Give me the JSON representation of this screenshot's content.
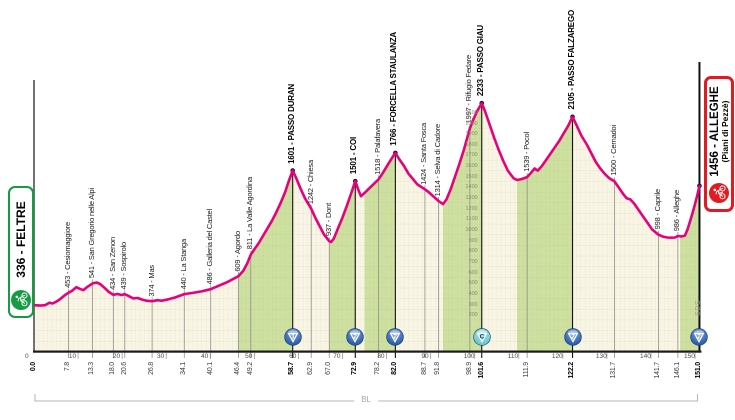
{
  "colors": {
    "line_pink": "#e6007d",
    "fill_beige": "#f9f5e4",
    "fill_green": "#cde09f",
    "grid": "#a9a188",
    "axis_black": "#1a1a1a",
    "tick_gray": "#8f8f8f",
    "start_green": "#169a43",
    "finish_red": "#e01b22",
    "cat_ball_blue": "#1c4f9e",
    "cima_coppi_teal": "#5cc2c9"
  },
  "chart_data": {
    "type": "area",
    "x_unit": "km",
    "x_range": [
      0,
      151
    ],
    "y_unit": "m",
    "axis_ticks": [
      10,
      20,
      30,
      40,
      50,
      60,
      70,
      80,
      90,
      100,
      110,
      120,
      130,
      140,
      150
    ],
    "axis_zero_label": "0",
    "elevation_scale": [
      200,
      300,
      400,
      500,
      600,
      700,
      800,
      900,
      1000,
      1100,
      1200,
      1300,
      1400,
      1500,
      1600,
      1700,
      1800,
      1900,
      2000,
      2100
    ],
    "start": {
      "km": 0.0,
      "elev": 336,
      "label": "336 - FELTRE",
      "type": "start"
    },
    "finish": {
      "km": 151.0,
      "elev": 1456,
      "label": "1456 - ALLEGHE",
      "sub": "(Piani di Pezzè)",
      "type": "finish",
      "cat": "2"
    },
    "waypoints": [
      {
        "km": 7.8,
        "elev": 453,
        "label": "453 - Cesiomaggiore",
        "type": "waypoint"
      },
      {
        "km": 13.3,
        "elev": 541,
        "label": "541 - San Gregorio nelle Alpi",
        "type": "waypoint"
      },
      {
        "km": 18.0,
        "elev": 434,
        "label": "434 - San Zenon",
        "type": "waypoint"
      },
      {
        "km": 20.6,
        "elev": 439,
        "label": "439 - Sospirolo",
        "type": "waypoint"
      },
      {
        "km": 26.8,
        "elev": 374,
        "label": "374 - Mas",
        "type": "waypoint"
      },
      {
        "km": 34.1,
        "elev": 440,
        "label": "440 - La Stanga",
        "type": "waypoint"
      },
      {
        "km": 40.1,
        "elev": 486,
        "label": "486 - Galleria del Castel",
        "type": "waypoint"
      },
      {
        "km": 46.4,
        "elev": 609,
        "label": "609 - Agordo",
        "type": "waypoint"
      },
      {
        "km": 49.2,
        "elev": 811,
        "label": "811 - La Valle Agordina",
        "type": "waypoint"
      },
      {
        "km": 58.7,
        "elev": 1601,
        "label": "1601 - PASSO DURAN",
        "type": "summit",
        "cat": "1"
      },
      {
        "km": 62.9,
        "elev": 1242,
        "label": "1242 - Chiesa",
        "type": "waypoint"
      },
      {
        "km": 67.0,
        "elev": 937,
        "label": "937 - Dont",
        "type": "waypoint"
      },
      {
        "km": 72.9,
        "elev": 1501,
        "label": "1501 - COI",
        "type": "summit",
        "cat": "2"
      },
      {
        "km": 78.2,
        "elev": 1518,
        "label": "1518 - Palafavera",
        "type": "waypoint"
      },
      {
        "km": 82.0,
        "elev": 1766,
        "label": "1766 - FORCELLA STAULANZA",
        "type": "summit",
        "cat": "2"
      },
      {
        "km": 88.7,
        "elev": 1424,
        "label": "1424 - Santa Fosca",
        "type": "waypoint"
      },
      {
        "km": 91.8,
        "elev": 1314,
        "label": "1314 - Selva di Cadore",
        "type": "waypoint"
      },
      {
        "km": 98.9,
        "elev": 1997,
        "label": "1997 - Rifugio Fedare",
        "type": "waypoint"
      },
      {
        "km": 101.6,
        "elev": 2233,
        "label": "2233 - PASSO GIAU",
        "type": "summit",
        "cat": "C"
      },
      {
        "km": 111.9,
        "elev": 1539,
        "label": "1539 - Pocol",
        "type": "waypoint"
      },
      {
        "km": 122.2,
        "elev": 2105,
        "label": "2105 - PASSO FALZAREGO",
        "type": "summit",
        "cat": "2"
      },
      {
        "km": 131.7,
        "elev": 1500,
        "label": "1500 - Cernadoi",
        "type": "waypoint"
      },
      {
        "km": 141.7,
        "elev": 998,
        "label": "998 - Caprile",
        "type": "waypoint"
      },
      {
        "km": 146.1,
        "elev": 986,
        "label": "986 - Alleghe",
        "type": "waypoint"
      }
    ],
    "climb_segments": [
      [
        46.4,
        58.7
      ],
      [
        67.0,
        72.9
      ],
      [
        75.0,
        82.0
      ],
      [
        92.8,
        101.6
      ],
      [
        109.6,
        122.2
      ],
      [
        146.6,
        151.0
      ]
    ],
    "profile_points": [
      [
        0,
        336
      ],
      [
        1.5,
        332
      ],
      [
        2.5,
        336
      ],
      [
        3.5,
        360
      ],
      [
        4.2,
        352
      ],
      [
        5,
        368
      ],
      [
        6,
        395
      ],
      [
        7,
        430
      ],
      [
        7.8,
        453
      ],
      [
        8.6,
        470
      ],
      [
        9.6,
        505
      ],
      [
        10.4,
        490
      ],
      [
        11.2,
        478
      ],
      [
        12,
        505
      ],
      [
        13.3,
        541
      ],
      [
        14.2,
        549
      ],
      [
        15,
        535
      ],
      [
        16,
        500
      ],
      [
        17,
        460
      ],
      [
        18,
        434
      ],
      [
        19,
        441
      ],
      [
        19.8,
        432
      ],
      [
        20.6,
        439
      ],
      [
        21.6,
        420
      ],
      [
        22.5,
        400
      ],
      [
        23.5,
        404
      ],
      [
        24.5,
        390
      ],
      [
        25.5,
        378
      ],
      [
        26.8,
        374
      ],
      [
        28,
        383
      ],
      [
        29,
        378
      ],
      [
        30.5,
        392
      ],
      [
        32,
        408
      ],
      [
        34.1,
        440
      ],
      [
        36,
        452
      ],
      [
        38,
        466
      ],
      [
        40.1,
        486
      ],
      [
        42,
        520
      ],
      [
        44,
        556
      ],
      [
        46.4,
        609
      ],
      [
        47.5,
        660
      ],
      [
        48.4,
        730
      ],
      [
        49.2,
        811
      ],
      [
        50,
        860
      ],
      [
        51,
        920
      ],
      [
        52,
        990
      ],
      [
        53,
        1060
      ],
      [
        54,
        1130
      ],
      [
        55,
        1210
      ],
      [
        56,
        1300
      ],
      [
        57,
        1400
      ],
      [
        57.8,
        1500
      ],
      [
        58.7,
        1601
      ],
      [
        59.5,
        1530
      ],
      [
        60.5,
        1430
      ],
      [
        61.5,
        1340
      ],
      [
        62.9,
        1242
      ],
      [
        63.8,
        1160
      ],
      [
        64.8,
        1080
      ],
      [
        65.8,
        1000
      ],
      [
        67,
        937
      ],
      [
        67.4,
        930
      ],
      [
        68,
        960
      ],
      [
        69,
        1060
      ],
      [
        70,
        1160
      ],
      [
        71,
        1270
      ],
      [
        72,
        1390
      ],
      [
        72.9,
        1501
      ],
      [
        73.5,
        1430
      ],
      [
        74.2,
        1360
      ],
      [
        75,
        1390
      ],
      [
        76,
        1430
      ],
      [
        77,
        1470
      ],
      [
        78.2,
        1518
      ],
      [
        79.2,
        1580
      ],
      [
        80.2,
        1650
      ],
      [
        81.1,
        1710
      ],
      [
        82,
        1766
      ],
      [
        83,
        1700
      ],
      [
        84,
        1640
      ],
      [
        85,
        1570
      ],
      [
        86,
        1520
      ],
      [
        87,
        1470
      ],
      [
        88.7,
        1424
      ],
      [
        89.5,
        1400
      ],
      [
        90.3,
        1370
      ],
      [
        91.8,
        1314
      ],
      [
        92.8,
        1285
      ],
      [
        93.6,
        1330
      ],
      [
        94.5,
        1420
      ],
      [
        95.5,
        1540
      ],
      [
        96.5,
        1660
      ],
      [
        97.5,
        1790
      ],
      [
        98.9,
        1997
      ],
      [
        99.8,
        2090
      ],
      [
        100.7,
        2170
      ],
      [
        101.6,
        2233
      ],
      [
        102.4,
        2150
      ],
      [
        103.4,
        2030
      ],
      [
        104.5,
        1900
      ],
      [
        105.5,
        1790
      ],
      [
        106.5,
        1690
      ],
      [
        107.5,
        1600
      ],
      [
        108.8,
        1530
      ],
      [
        109.6,
        1512
      ],
      [
        110.6,
        1520
      ],
      [
        111.9,
        1539
      ],
      [
        112.8,
        1580
      ],
      [
        113.6,
        1620
      ],
      [
        114.3,
        1600
      ],
      [
        115.2,
        1640
      ],
      [
        116.2,
        1700
      ],
      [
        117.2,
        1760
      ],
      [
        118.2,
        1820
      ],
      [
        119.2,
        1880
      ],
      [
        120.2,
        1950
      ],
      [
        121.2,
        2020
      ],
      [
        122.2,
        2105
      ],
      [
        123.2,
        2020
      ],
      [
        124.2,
        1930
      ],
      [
        125.5,
        1840
      ],
      [
        126.5,
        1760
      ],
      [
        127.5,
        1680
      ],
      [
        128.5,
        1620
      ],
      [
        129.5,
        1570
      ],
      [
        130.5,
        1530
      ],
      [
        131.7,
        1500
      ],
      [
        132.7,
        1440
      ],
      [
        133.7,
        1380
      ],
      [
        134.5,
        1340
      ],
      [
        135.3,
        1330
      ],
      [
        136.2,
        1290
      ],
      [
        137.2,
        1230
      ],
      [
        138.2,
        1170
      ],
      [
        139.2,
        1110
      ],
      [
        140.2,
        1050
      ],
      [
        141.7,
        998
      ],
      [
        142.7,
        980
      ],
      [
        143.7,
        972
      ],
      [
        144.7,
        970
      ],
      [
        145.4,
        972
      ],
      [
        146.1,
        986
      ],
      [
        147,
        982
      ],
      [
        147.7,
        990
      ],
      [
        148.3,
        1050
      ],
      [
        149,
        1140
      ],
      [
        149.7,
        1240
      ],
      [
        150.4,
        1350
      ],
      [
        151,
        1456
      ]
    ],
    "footer": {
      "bracket_label": "BL",
      "side_label": "SDS"
    }
  }
}
